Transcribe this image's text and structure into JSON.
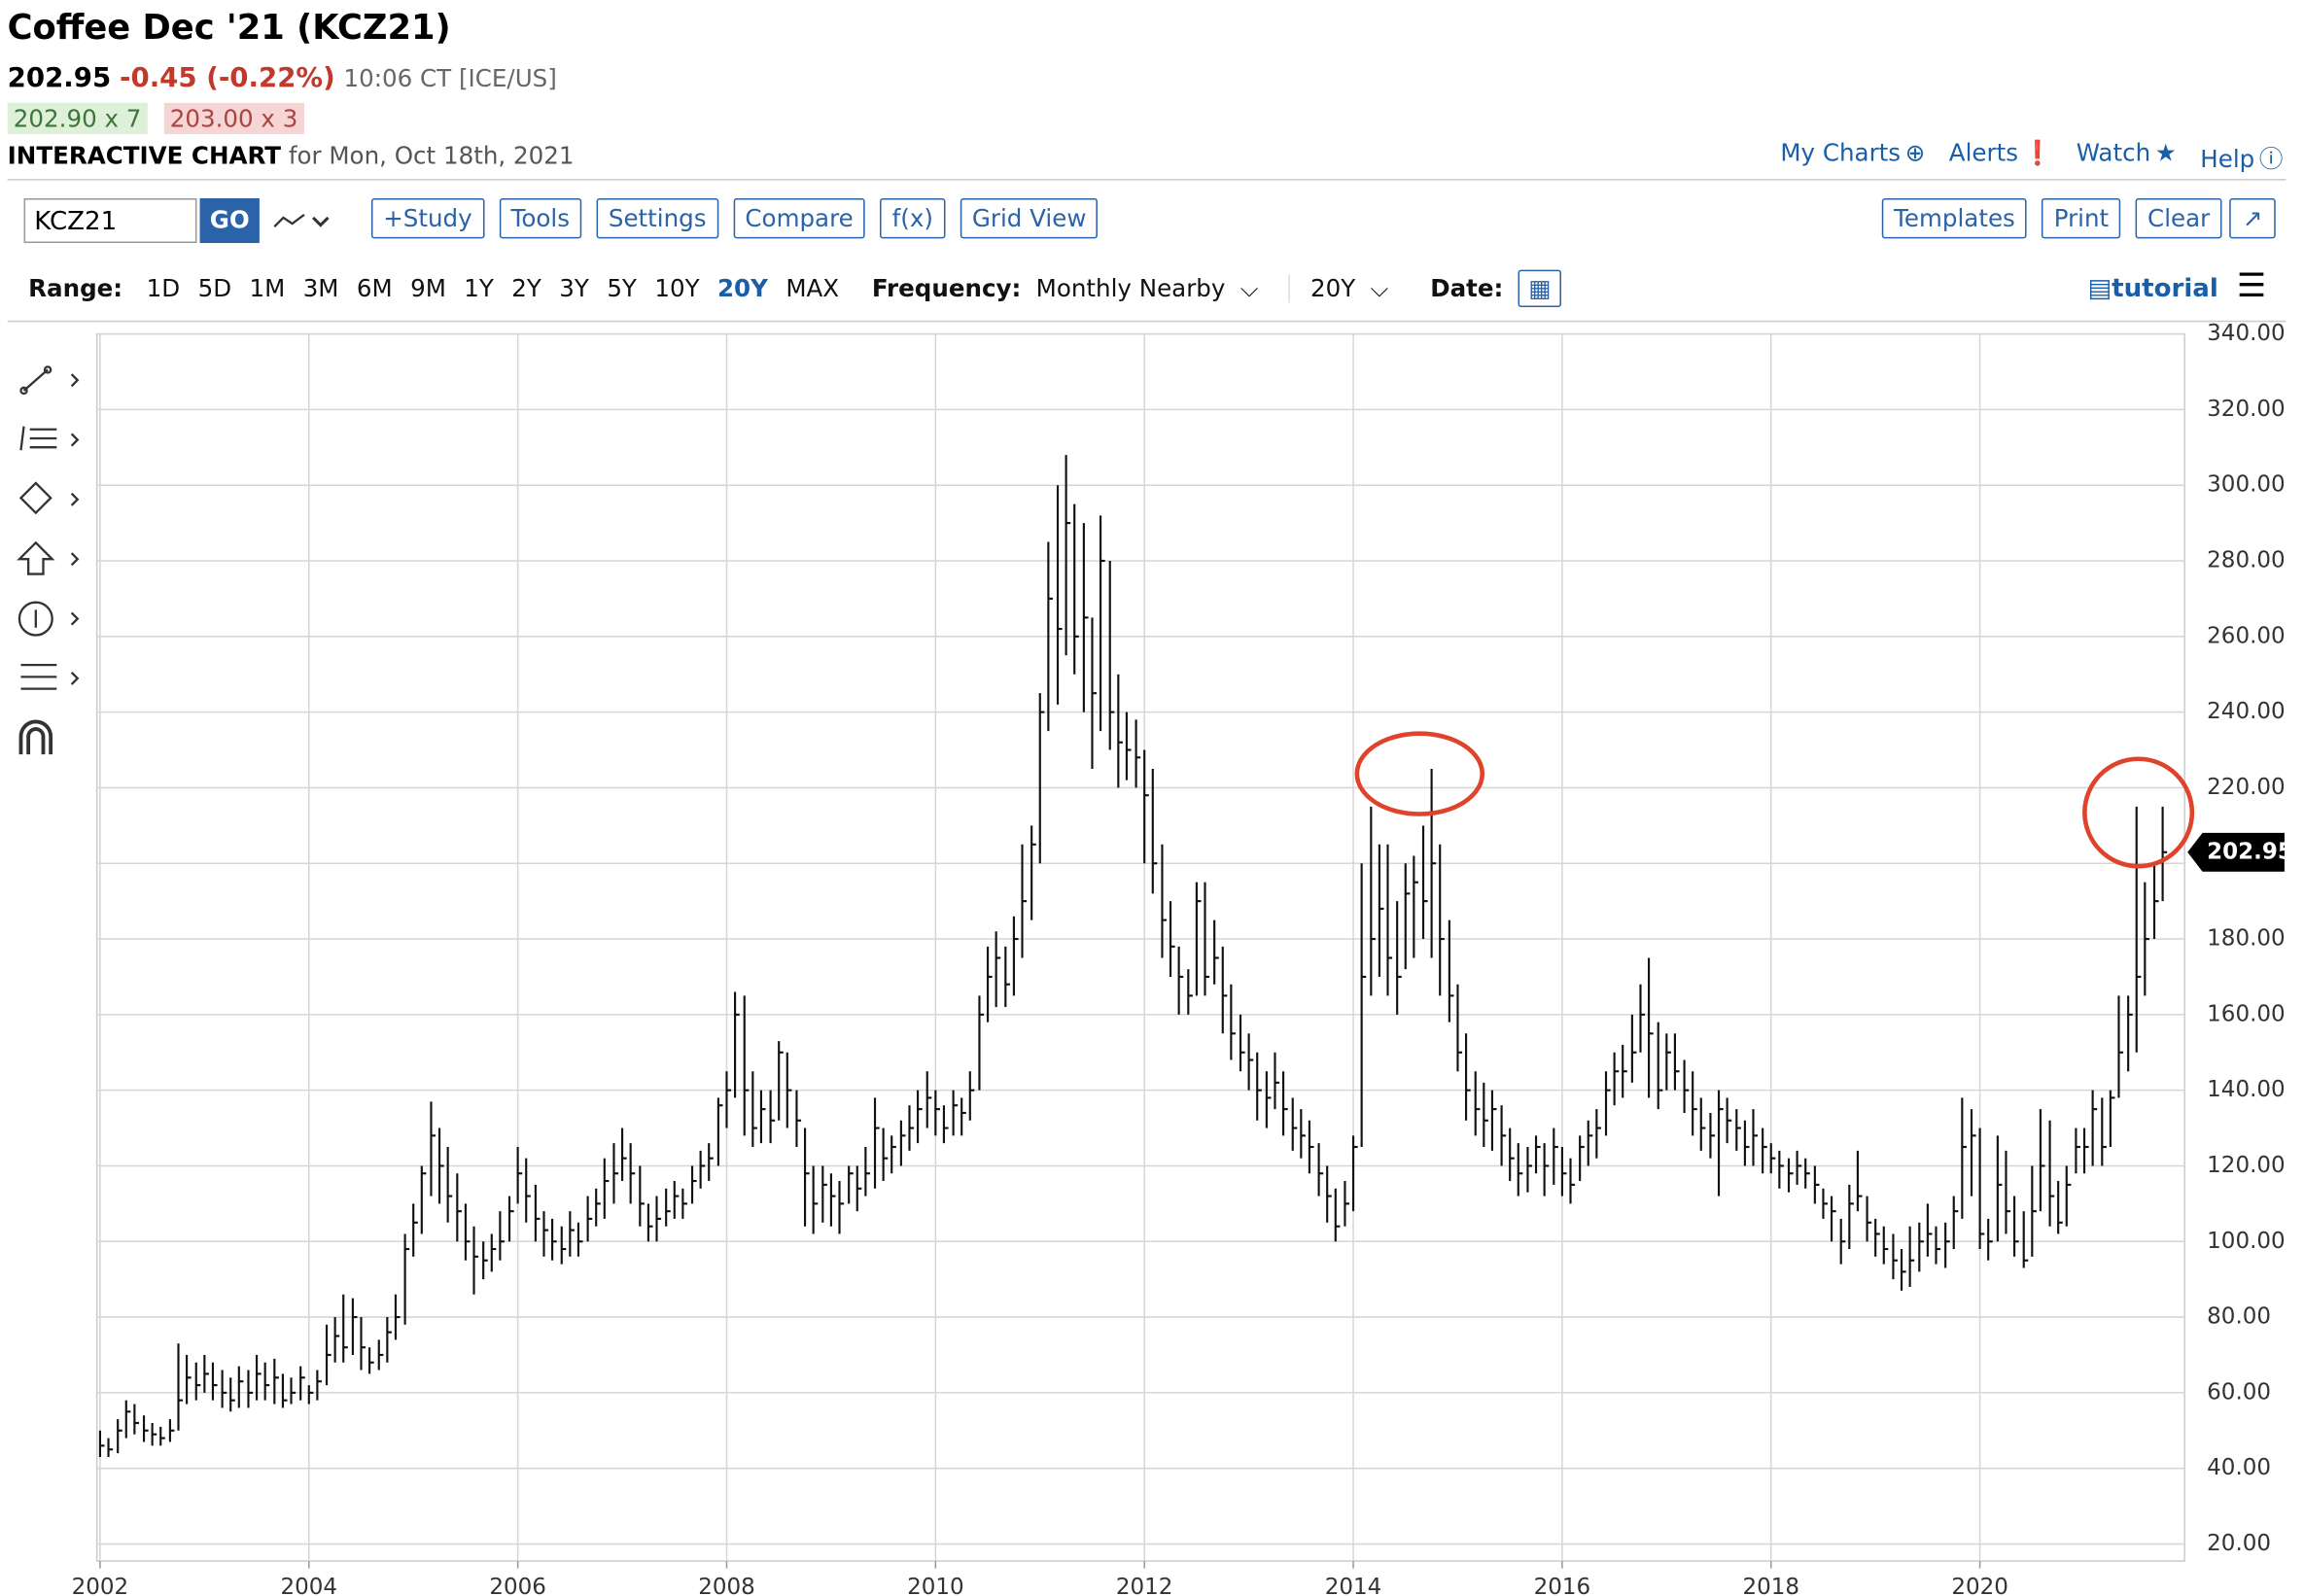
{
  "header": {
    "title": "Coffee Dec '21 (KCZ21)",
    "last": "202.95",
    "change": "-0.45 (-0.22%)",
    "time": "10:06 CT [ICE/US]",
    "bid": "202.90 x 7",
    "ask": "203.00 x 3",
    "chart_label": "INTERACTIVE CHART",
    "date": "for Mon, Oct 18th, 2021"
  },
  "top_links": [
    "My Charts",
    "Alerts",
    "Watch",
    "Help"
  ],
  "toolbar": {
    "symbol": "KCZ21",
    "go": "GO",
    "buttons": [
      "+Study",
      "Tools",
      "Settings",
      "Compare",
      "f(x)",
      "Grid View"
    ],
    "right_buttons": [
      "Templates",
      "Print",
      "Clear"
    ]
  },
  "range": {
    "label": "Range:",
    "options": [
      "1D",
      "5D",
      "1M",
      "3M",
      "6M",
      "9M",
      "1Y",
      "2Y",
      "3Y",
      "5Y",
      "10Y",
      "20Y",
      "MAX"
    ],
    "selected": "20Y",
    "frequency_label": "Frequency:",
    "frequency": "Monthly Nearby",
    "period": "20Y",
    "date_label": "Date:",
    "tutorial": "tutorial"
  },
  "chart_data": {
    "type": "hlc",
    "color": "#111111",
    "grid": true,
    "xlim": [
      2001.97,
      2021.96
    ],
    "xticks": [
      2002,
      2004,
      2006,
      2008,
      2010,
      2012,
      2014,
      2016,
      2018,
      2020
    ],
    "ylim": [
      15.5,
      340
    ],
    "yticks": [
      {
        "value": 20,
        "label": "20.00"
      },
      {
        "value": 40,
        "label": "40.00"
      },
      {
        "value": 60,
        "label": "60.00"
      },
      {
        "value": 80,
        "label": "80.00"
      },
      {
        "value": 100,
        "label": "100.00"
      },
      {
        "value": 120,
        "label": "120.00"
      },
      {
        "value": 140,
        "label": "140.00"
      },
      {
        "value": 160,
        "label": "160.00"
      },
      {
        "value": 180,
        "label": "180.00"
      },
      {
        "value": 200,
        "label": "200.00"
      },
      {
        "value": 220,
        "label": "220.00"
      },
      {
        "value": 240,
        "label": "240.00"
      },
      {
        "value": 260,
        "label": "260.00"
      },
      {
        "value": 280,
        "label": "280.00"
      },
      {
        "value": 300,
        "label": "300.00"
      },
      {
        "value": 320,
        "label": "320.00"
      },
      {
        "value": 340,
        "label": "340.00"
      }
    ],
    "x": [
      2002,
      2002.08,
      2002.17,
      2002.25,
      2002.33,
      2002.42,
      2002.5,
      2002.58,
      2002.67,
      2002.75,
      2002.83,
      2002.92,
      2003,
      2003.08,
      2003.17,
      2003.25,
      2003.33,
      2003.42,
      2003.5,
      2003.58,
      2003.67,
      2003.75,
      2003.83,
      2003.92,
      2004,
      2004.08,
      2004.17,
      2004.25,
      2004.33,
      2004.42,
      2004.5,
      2004.58,
      2004.67,
      2004.75,
      2004.83,
      2004.92,
      2005,
      2005.08,
      2005.17,
      2005.25,
      2005.33,
      2005.42,
      2005.5,
      2005.58,
      2005.67,
      2005.75,
      2005.83,
      2005.92,
      2006,
      2006.08,
      2006.17,
      2006.25,
      2006.33,
      2006.42,
      2006.5,
      2006.58,
      2006.67,
      2006.75,
      2006.83,
      2006.92,
      2007,
      2007.08,
      2007.17,
      2007.25,
      2007.33,
      2007.42,
      2007.5,
      2007.58,
      2007.67,
      2007.75,
      2007.83,
      2007.92,
      2008,
      2008.08,
      2008.17,
      2008.25,
      2008.33,
      2008.42,
      2008.5,
      2008.58,
      2008.67,
      2008.75,
      2008.83,
      2008.92,
      2009,
      2009.08,
      2009.17,
      2009.25,
      2009.33,
      2009.42,
      2009.5,
      2009.58,
      2009.67,
      2009.75,
      2009.83,
      2009.92,
      2010,
      2010.08,
      2010.17,
      2010.25,
      2010.33,
      2010.42,
      2010.5,
      2010.58,
      2010.67,
      2010.75,
      2010.83,
      2010.92,
      2011,
      2011.08,
      2011.17,
      2011.25,
      2011.33,
      2011.42,
      2011.5,
      2011.58,
      2011.67,
      2011.75,
      2011.83,
      2011.92,
      2012,
      2012.08,
      2012.17,
      2012.25,
      2012.33,
      2012.42,
      2012.5,
      2012.58,
      2012.67,
      2012.75,
      2012.83,
      2012.92,
      2013,
      2013.08,
      2013.17,
      2013.25,
      2013.33,
      2013.42,
      2013.5,
      2013.58,
      2013.67,
      2013.75,
      2013.83,
      2013.92,
      2014,
      2014.08,
      2014.17,
      2014.25,
      2014.33,
      2014.42,
      2014.5,
      2014.58,
      2014.67,
      2014.75,
      2014.83,
      2014.92,
      2015,
      2015.08,
      2015.17,
      2015.25,
      2015.33,
      2015.42,
      2015.5,
      2015.58,
      2015.67,
      2015.75,
      2015.83,
      2015.92,
      2016,
      2016.08,
      2016.17,
      2016.25,
      2016.33,
      2016.42,
      2016.5,
      2016.58,
      2016.67,
      2016.75,
      2016.83,
      2016.92,
      2017,
      2017.08,
      2017.17,
      2017.25,
      2017.33,
      2017.42,
      2017.5,
      2017.58,
      2017.67,
      2017.75,
      2017.83,
      2017.92,
      2018,
      2018.08,
      2018.17,
      2018.25,
      2018.33,
      2018.42,
      2018.5,
      2018.58,
      2018.67,
      2018.75,
      2018.83,
      2018.92,
      2019,
      2019.08,
      2019.17,
      2019.25,
      2019.33,
      2019.42,
      2019.5,
      2019.58,
      2019.67,
      2019.75,
      2019.83,
      2019.92,
      2020,
      2020.08,
      2020.17,
      2020.25,
      2020.33,
      2020.42,
      2020.5,
      2020.58,
      2020.67,
      2020.75,
      2020.83,
      2020.92,
      2021,
      2021.08,
      2021.17,
      2021.25,
      2021.33,
      2021.42,
      2021.5,
      2021.58,
      2021.67,
      2021.75
    ],
    "high": [
      50,
      48,
      53,
      58,
      57,
      54,
      52,
      51,
      53,
      73,
      70,
      68,
      70,
      68,
      66,
      64,
      67,
      66,
      70,
      68,
      69,
      65,
      64,
      67,
      62,
      66,
      78,
      80,
      86,
      85,
      80,
      72,
      74,
      80,
      86,
      102,
      110,
      120,
      137,
      130,
      125,
      118,
      110,
      104,
      100,
      102,
      108,
      112,
      125,
      122,
      115,
      108,
      106,
      104,
      108,
      105,
      112,
      114,
      122,
      126,
      130,
      126,
      120,
      110,
      112,
      114,
      116,
      114,
      120,
      124,
      126,
      138,
      145,
      166,
      165,
      145,
      140,
      140,
      153,
      150,
      140,
      130,
      120,
      120,
      118,
      116,
      120,
      120,
      125,
      138,
      130,
      128,
      132,
      136,
      140,
      145,
      140,
      136,
      140,
      138,
      145,
      165,
      178,
      182,
      178,
      186,
      205,
      210,
      245,
      285,
      300,
      308,
      295,
      290,
      265,
      292,
      280,
      250,
      240,
      238,
      230,
      225,
      205,
      190,
      178,
      172,
      195,
      195,
      185,
      178,
      168,
      160,
      155,
      150,
      145,
      150,
      145,
      138,
      135,
      132,
      126,
      120,
      114,
      116,
      128,
      200,
      215,
      205,
      205,
      190,
      200,
      202,
      210,
      225,
      205,
      185,
      168,
      155,
      145,
      142,
      140,
      136,
      130,
      126,
      125,
      128,
      126,
      130,
      125,
      122,
      128,
      132,
      135,
      145,
      150,
      152,
      160,
      168,
      175,
      158,
      155,
      155,
      148,
      145,
      138,
      134,
      140,
      138,
      135,
      132,
      135,
      130,
      126,
      124,
      122,
      124,
      122,
      120,
      114,
      112,
      106,
      115,
      124,
      112,
      106,
      104,
      102,
      98,
      104,
      105,
      110,
      104,
      105,
      112,
      138,
      135,
      130,
      106,
      128,
      124,
      112,
      108,
      120,
      135,
      132,
      116,
      120,
      130,
      130,
      140,
      138,
      140,
      165,
      165,
      215,
      195,
      200,
      215
    ],
    "low": [
      43,
      43,
      44,
      48,
      49,
      47,
      46,
      46,
      47,
      50,
      57,
      58,
      60,
      58,
      56,
      55,
      56,
      56,
      58,
      58,
      57,
      56,
      57,
      58,
      57,
      58,
      62,
      68,
      68,
      70,
      66,
      65,
      66,
      68,
      74,
      78,
      96,
      102,
      112,
      110,
      105,
      100,
      95,
      86,
      90,
      92,
      95,
      100,
      110,
      105,
      100,
      96,
      95,
      94,
      96,
      96,
      100,
      104,
      106,
      110,
      116,
      110,
      104,
      100,
      100,
      104,
      106,
      106,
      110,
      114,
      116,
      120,
      130,
      138,
      128,
      125,
      126,
      126,
      132,
      130,
      125,
      104,
      102,
      105,
      104,
      102,
      110,
      108,
      112,
      114,
      116,
      118,
      120,
      124,
      126,
      130,
      128,
      126,
      128,
      128,
      132,
      140,
      158,
      162,
      162,
      165,
      175,
      185,
      200,
      235,
      242,
      255,
      250,
      240,
      225,
      235,
      230,
      220,
      222,
      220,
      200,
      192,
      175,
      170,
      160,
      160,
      165,
      165,
      168,
      155,
      148,
      145,
      140,
      132,
      130,
      135,
      128,
      124,
      122,
      118,
      112,
      105,
      100,
      104,
      108,
      125,
      165,
      170,
      165,
      160,
      172,
      175,
      180,
      175,
      165,
      158,
      145,
      132,
      128,
      125,
      124,
      120,
      116,
      112,
      113,
      118,
      112,
      115,
      112,
      110,
      116,
      120,
      122,
      128,
      136,
      138,
      142,
      150,
      138,
      135,
      140,
      140,
      134,
      128,
      124,
      122,
      112,
      126,
      124,
      120,
      120,
      118,
      118,
      114,
      113,
      115,
      114,
      110,
      106,
      100,
      94,
      98,
      108,
      100,
      96,
      94,
      90,
      87,
      88,
      92,
      96,
      94,
      93,
      98,
      106,
      112,
      98,
      95,
      100,
      102,
      96,
      93,
      96,
      108,
      104,
      102,
      104,
      118,
      118,
      120,
      120,
      125,
      138,
      145,
      150,
      165,
      180,
      190
    ],
    "close": [
      46,
      45,
      50,
      55,
      52,
      50,
      49,
      48,
      50,
      58,
      64,
      62,
      65,
      62,
      60,
      58,
      63,
      60,
      65,
      62,
      64,
      58,
      60,
      64,
      60,
      63,
      70,
      75,
      72,
      80,
      72,
      68,
      70,
      76,
      80,
      98,
      105,
      118,
      128,
      120,
      112,
      108,
      100,
      96,
      95,
      98,
      100,
      108,
      118,
      112,
      106,
      103,
      100,
      98,
      103,
      100,
      106,
      110,
      116,
      118,
      122,
      118,
      110,
      104,
      106,
      108,
      112,
      110,
      116,
      120,
      122,
      136,
      140,
      160,
      140,
      130,
      135,
      132,
      150,
      140,
      132,
      118,
      110,
      115,
      112,
      110,
      118,
      114,
      118,
      130,
      122,
      125,
      128,
      130,
      135,
      138,
      135,
      130,
      136,
      134,
      140,
      160,
      170,
      175,
      168,
      180,
      190,
      205,
      240,
      270,
      262,
      290,
      260,
      265,
      245,
      280,
      240,
      232,
      230,
      228,
      218,
      200,
      185,
      178,
      170,
      165,
      190,
      170,
      175,
      165,
      155,
      150,
      148,
      140,
      138,
      142,
      135,
      130,
      128,
      125,
      118,
      112,
      104,
      110,
      125,
      170,
      180,
      188,
      175,
      170,
      192,
      195,
      190,
      200,
      180,
      165,
      150,
      140,
      135,
      132,
      135,
      128,
      122,
      118,
      120,
      125,
      120,
      125,
      118,
      115,
      125,
      128,
      130,
      140,
      145,
      145,
      150,
      160,
      155,
      140,
      150,
      145,
      140,
      135,
      130,
      128,
      135,
      132,
      130,
      125,
      128,
      125,
      122,
      120,
      118,
      120,
      118,
      115,
      110,
      108,
      100,
      110,
      112,
      105,
      102,
      98,
      95,
      92,
      95,
      100,
      102,
      98,
      100,
      108,
      125,
      128,
      102,
      100,
      115,
      108,
      100,
      95,
      108,
      120,
      112,
      105,
      115,
      125,
      125,
      135,
      125,
      138,
      150,
      160,
      170,
      180,
      190,
      202.95
    ]
  }
}
